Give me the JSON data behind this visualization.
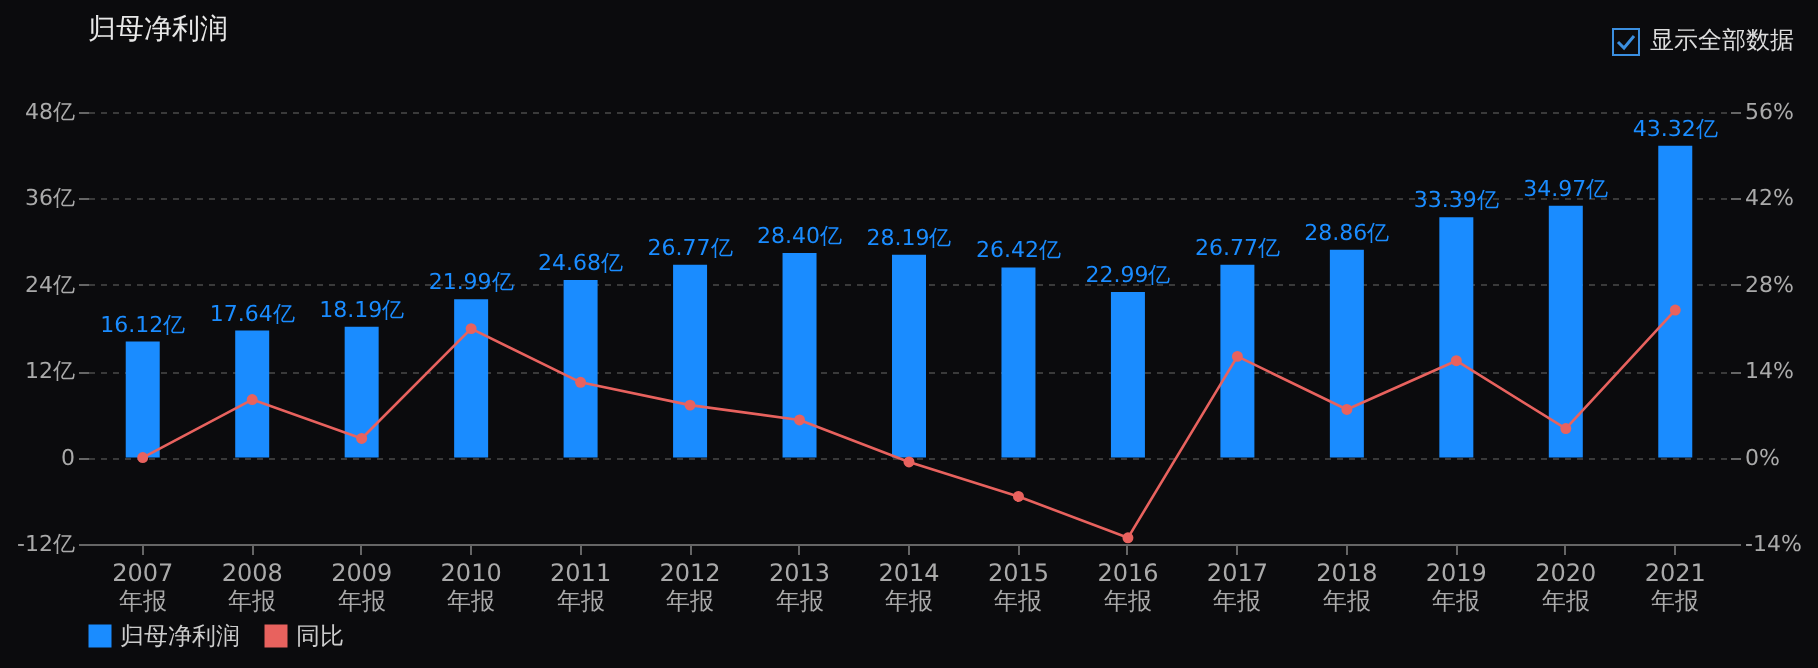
{
  "chart_data": {
    "type": "bar",
    "title": "归母净利润",
    "categories": [
      "2007\n年报",
      "2008\n年报",
      "2009\n年报",
      "2010\n年报",
      "2011\n年报",
      "2012\n年报",
      "2013\n年报",
      "2014\n年报",
      "2015\n年报",
      "2016\n年报",
      "2017\n年报",
      "2018\n年报",
      "2019\n年报",
      "2020\n年报",
      "2021\n年报"
    ],
    "series": [
      {
        "name": "归母净利润",
        "color": "#1a8cff",
        "values": [
          16.12,
          17.64,
          18.19,
          21.99,
          24.68,
          26.77,
          28.4,
          28.19,
          26.42,
          22.99,
          26.77,
          28.86,
          33.39,
          34.97,
          43.32
        ],
        "value_labels": [
          "16.12亿",
          "17.64亿",
          "18.19亿",
          "21.99亿",
          "24.68亿",
          "26.77亿",
          "28.40亿",
          "28.19亿",
          "26.42亿",
          "22.99亿",
          "26.77亿",
          "28.86亿",
          "33.39亿",
          "34.97亿",
          "43.32亿"
        ]
      },
      {
        "name": "同比",
        "type": "line",
        "axis": "y2",
        "color": "#e8625e",
        "marker": "circle",
        "line_style": "solid",
        "values": [
          0,
          9.4,
          3.1,
          20.9,
          12.2,
          8.5,
          6.1,
          -0.7,
          -6.3,
          -13.0,
          16.4,
          7.8,
          15.7,
          4.7,
          23.9
        ]
      }
    ],
    "ylim": [
      -12,
      48
    ],
    "yticks": [
      {
        "value": -12,
        "label": "-12亿"
      },
      {
        "value": 0,
        "label": "0"
      },
      {
        "value": 12,
        "label": "12亿"
      },
      {
        "value": 24,
        "label": "24亿"
      },
      {
        "value": 36,
        "label": "36亿"
      },
      {
        "value": 48,
        "label": "48亿"
      }
    ],
    "y2lim": [
      -14,
      56
    ],
    "y2ticks": [
      {
        "value": -14,
        "label": "-14%"
      },
      {
        "value": 0,
        "label": "0%"
      },
      {
        "value": 14,
        "label": "14%"
      },
      {
        "value": 28,
        "label": "28%"
      },
      {
        "value": 42,
        "label": "42%"
      },
      {
        "value": 56,
        "label": "56%"
      }
    ],
    "grid": "y",
    "legend": "bottom left",
    "annotations": [
      "显示全部数据"
    ]
  }
}
